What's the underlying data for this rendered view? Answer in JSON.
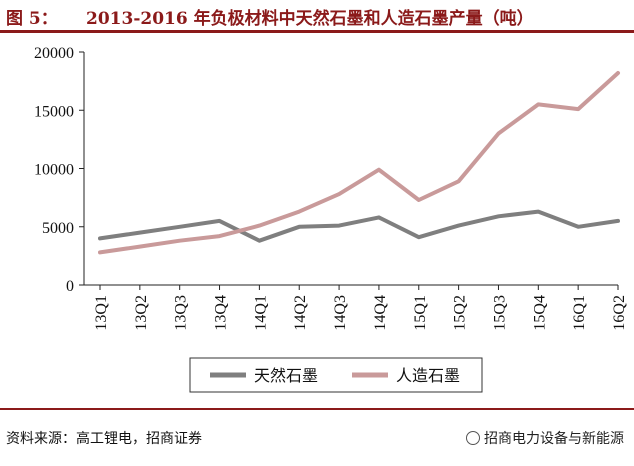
{
  "header": {
    "figure_label": "图 5：",
    "title": "2013-2016 年负极材料中天然石墨和人造石墨产量（吨）"
  },
  "footer": {
    "source": "资料来源：高工锂电，招商证券",
    "brand": "招商电力设备与新能源"
  },
  "chart_data": {
    "type": "line",
    "categories": [
      "13Q1",
      "13Q2",
      "13Q3",
      "13Q4",
      "14Q1",
      "14Q2",
      "14Q3",
      "14Q4",
      "15Q1",
      "15Q2",
      "15Q3",
      "15Q4",
      "16Q1",
      "16Q2"
    ],
    "series": [
      {
        "name": "天然石墨",
        "color": "#7f7f7f",
        "values": [
          4000,
          4500,
          5000,
          5500,
          3800,
          5000,
          5100,
          5800,
          4100,
          5100,
          5900,
          6300,
          5000,
          5500
        ]
      },
      {
        "name": "人造石墨",
        "color": "#c99a9a",
        "values": [
          2800,
          3300,
          3800,
          4200,
          5100,
          6300,
          7800,
          9900,
          7300,
          8900,
          13000,
          15500,
          15100,
          18200
        ]
      }
    ],
    "ylim": [
      0,
      20000
    ],
    "yticks": [
      "0",
      "5000",
      "10000",
      "15000",
      "20000"
    ],
    "legend_position": "bottom",
    "grid": false
  }
}
